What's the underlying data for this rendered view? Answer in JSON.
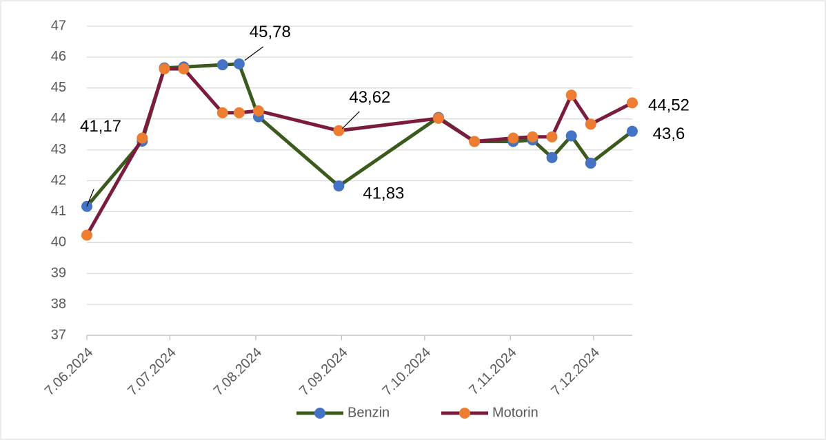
{
  "chart_data": {
    "type": "line",
    "x": [
      "2024-06-07",
      "2024-06-27",
      "2024-07-05",
      "2024-07-12",
      "2024-07-26",
      "2024-08-01",
      "2024-08-08",
      "2024-09-06",
      "2024-10-12",
      "2024-10-25",
      "2024-11-08",
      "2024-11-15",
      "2024-11-22",
      "2024-11-29",
      "2024-12-06",
      "2024-12-21"
    ],
    "series": [
      {
        "name": "Benzin",
        "color": "#3a5a1e",
        "marker_color": "#4472c4",
        "values": [
          41.17,
          43.28,
          45.65,
          45.68,
          45.75,
          45.78,
          44.07,
          41.83,
          44.05,
          43.27,
          43.27,
          43.32,
          42.75,
          43.45,
          42.57,
          43.6
        ],
        "value_labels": [
          "41,17",
          null,
          null,
          null,
          null,
          "45,78",
          null,
          "41,83",
          null,
          null,
          null,
          null,
          null,
          null,
          null,
          "43,6"
        ]
      },
      {
        "name": "Motorin",
        "color": "#7b1c3e",
        "marker_color": "#ed7d31",
        "values": [
          40.24,
          43.38,
          45.62,
          45.62,
          44.2,
          44.2,
          44.26,
          43.62,
          44.02,
          43.27,
          43.38,
          43.42,
          43.42,
          44.77,
          43.83,
          44.52
        ],
        "value_labels": [
          null,
          null,
          null,
          null,
          null,
          null,
          null,
          "43,62",
          null,
          null,
          null,
          null,
          null,
          null,
          null,
          "44,52"
        ]
      }
    ],
    "xlim": [
      "2024-06-07",
      "2024-12-21"
    ],
    "xticks": [
      {
        "value": "2024-06-07",
        "label": "7.06.2024"
      },
      {
        "value": "2024-07-07",
        "label": "7.07.2024"
      },
      {
        "value": "2024-08-07",
        "label": "7.08.2024"
      },
      {
        "value": "2024-09-07",
        "label": "7.09.2024"
      },
      {
        "value": "2024-10-07",
        "label": "7.10.2024"
      },
      {
        "value": "2024-11-07",
        "label": "7.11.2024"
      },
      {
        "value": "2024-12-07",
        "label": "7.12.2024"
      }
    ],
    "ylim": [
      37,
      47
    ],
    "yticks": [
      37,
      38,
      39,
      40,
      41,
      42,
      43,
      44,
      45,
      46,
      47
    ],
    "grid": true,
    "legend": "bottom"
  }
}
